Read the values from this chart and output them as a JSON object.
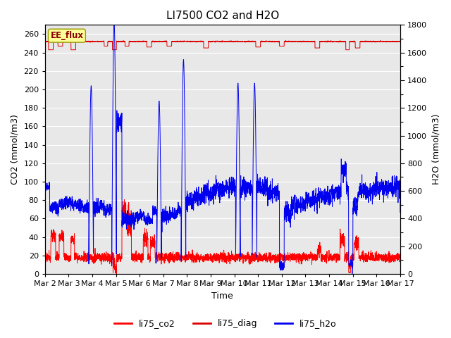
{
  "title": "LI7500 CO2 and H2O",
  "xlabel": "Time",
  "ylabel_left": "CO2 (mmol/m3)",
  "ylabel_right": "H2O (mmol/m3)",
  "ylim_left": [
    0,
    270
  ],
  "ylim_right": [
    0,
    1800
  ],
  "yticks_left": [
    0,
    20,
    40,
    60,
    80,
    100,
    120,
    140,
    160,
    180,
    200,
    220,
    240,
    260
  ],
  "yticks_right": [
    0,
    200,
    400,
    600,
    800,
    1000,
    1200,
    1400,
    1600,
    1800
  ],
  "yticks_right_minor": [
    100,
    300,
    500,
    700,
    900,
    1100,
    1300,
    1500,
    1700
  ],
  "xtick_labels": [
    "Mar 2",
    "Mar 3",
    "Mar 4",
    "Mar 5",
    "Mar 6",
    "Mar 7",
    "Mar 8",
    "Mar 9",
    "Mar 10",
    "Mar 11",
    "Mar 12",
    "Mar 13",
    "Mar 14",
    "Mar 15",
    "Mar 16",
    "Mar 17"
  ],
  "xtick_positions": [
    2,
    3,
    4,
    5,
    6,
    7,
    8,
    9,
    10,
    11,
    12,
    13,
    14,
    15,
    16,
    17
  ],
  "xlim": [
    2,
    17
  ],
  "bg_color": "#e8e8e8",
  "co2_color": "#ff0000",
  "diag_color": "#dd0000",
  "h2o_color": "#0000ee",
  "ee_flux_label": "EE_flux",
  "ee_flux_bg": "#ffff99",
  "ee_flux_border": "#999900",
  "legend_labels": [
    "li75_co2",
    "li75_diag",
    "li75_h2o"
  ],
  "title_fontsize": 11,
  "axis_fontsize": 9,
  "tick_fontsize": 8,
  "line_width": 0.7
}
